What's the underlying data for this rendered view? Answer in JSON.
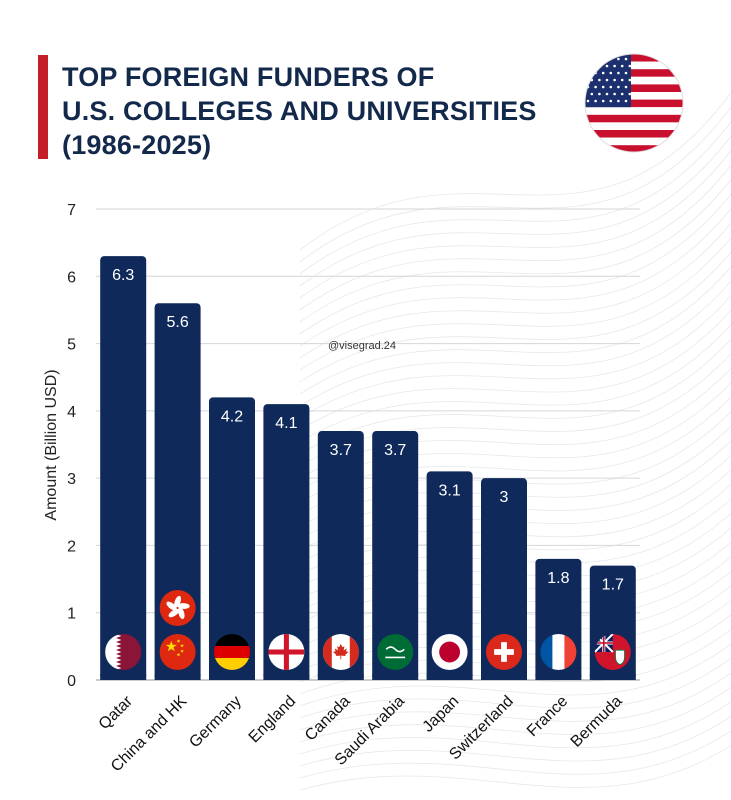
{
  "header": {
    "title_lines": [
      "TOP FOREIGN FUNDERS OF",
      "U.S. COLLEGES AND UNIVERSITIES",
      "(1986-2025)"
    ],
    "flag_icon": "us-flag-icon"
  },
  "watermark": "@visegrad.24",
  "colors": {
    "bar": "#0f2a5a",
    "accent": "#c41e2a",
    "title": "#13294b"
  },
  "chart_data": {
    "type": "bar",
    "title": "TOP FOREIGN FUNDERS OF U.S. COLLEGES AND UNIVERSITIES (1986-2025)",
    "xlabel": "",
    "ylabel": "Amount (Billion USD)",
    "ylim": [
      0,
      7
    ],
    "yticks": [
      0,
      1,
      2,
      3,
      4,
      5,
      6,
      7
    ],
    "grid": true,
    "categories": [
      "Qatar",
      "China and HK",
      "Germany",
      "England",
      "Canada",
      "Saudi Arabia",
      "Japan",
      "Switzerland",
      "France",
      "Bermuda"
    ],
    "values": [
      6.3,
      5.6,
      4.2,
      4.1,
      3.7,
      3.7,
      3.1,
      3,
      1.8,
      1.7
    ],
    "value_labels": [
      "6.3",
      "5.6",
      "4.2",
      "4.1",
      "3.7",
      "3.7",
      "3.1",
      "3",
      "1.8",
      "1.7"
    ],
    "flag_icons": [
      [
        "qatar-flag-icon"
      ],
      [
        "china-flag-icon",
        "hong-kong-flag-icon"
      ],
      [
        "germany-flag-icon"
      ],
      [
        "england-flag-icon"
      ],
      [
        "canada-flag-icon"
      ],
      [
        "saudi-arabia-flag-icon"
      ],
      [
        "japan-flag-icon"
      ],
      [
        "switzerland-flag-icon"
      ],
      [
        "france-flag-icon"
      ],
      [
        "bermuda-flag-icon"
      ]
    ]
  }
}
